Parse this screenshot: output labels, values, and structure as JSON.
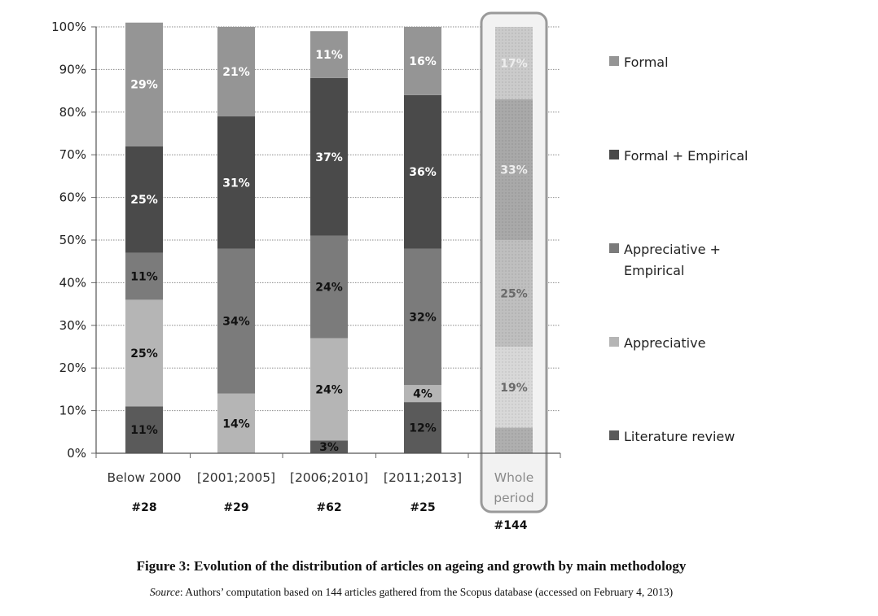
{
  "chart_data": {
    "type": "bar",
    "stacked": true,
    "percent_scale": true,
    "title": "",
    "xlabel": "",
    "ylabel": "",
    "ylim": [
      0,
      100
    ],
    "yticks": [
      "0%",
      "10%",
      "20%",
      "30%",
      "40%",
      "50%",
      "60%",
      "70%",
      "80%",
      "90%",
      "100%"
    ],
    "grid": true,
    "legend_position": "right",
    "categories": [
      {
        "label": "Below 2000",
        "count": "#28"
      },
      {
        "label": "[2001;2005]",
        "count": "#29"
      },
      {
        "label": "[2006;2010]",
        "count": "#62"
      },
      {
        "label": "[2011;2013]",
        "count": "#25"
      },
      {
        "label": "Whole period",
        "count": "#144",
        "highlighted": true
      }
    ],
    "series": [
      {
        "name": "Literature review",
        "color": "#5a5a5a",
        "values": [
          11,
          0,
          3,
          12,
          6
        ],
        "labels": [
          "11%",
          "",
          "3%",
          "12%",
          ""
        ]
      },
      {
        "name": "Appreciative",
        "color": "#b5b5b5",
        "values": [
          25,
          14,
          24,
          4,
          19
        ],
        "labels": [
          "25%",
          "14%",
          "24%",
          "4%",
          "19%"
        ]
      },
      {
        "name": "Appreciative + Empirical",
        "color": "#7b7b7b",
        "values": [
          11,
          34,
          24,
          32,
          25
        ],
        "labels": [
          "11%",
          "34%",
          "24%",
          "32%",
          "25%"
        ]
      },
      {
        "name": "Formal + Empirical",
        "color": "#4a4a4a",
        "values": [
          25,
          31,
          37,
          36,
          33
        ],
        "labels": [
          "25%",
          "31%",
          "37%",
          "36%",
          "33%"
        ]
      },
      {
        "name": "Formal",
        "color": "#959595",
        "values": [
          29,
          21,
          11,
          16,
          17
        ],
        "labels": [
          "29%",
          "21%",
          "11%",
          "16%",
          "17%"
        ]
      }
    ],
    "legend_order": [
      "Formal",
      "Formal + Empirical",
      "Appreciative + Empirical",
      "Appreciative",
      "Literature review"
    ]
  },
  "caption": "Figure 3: Evolution of the distribution of articles on ageing and growth by main methodology",
  "source_label": "Source",
  "source_text": ": Authors’ computation based on 144 articles gathered from the Scopus database (accessed on February 4, 2013)"
}
